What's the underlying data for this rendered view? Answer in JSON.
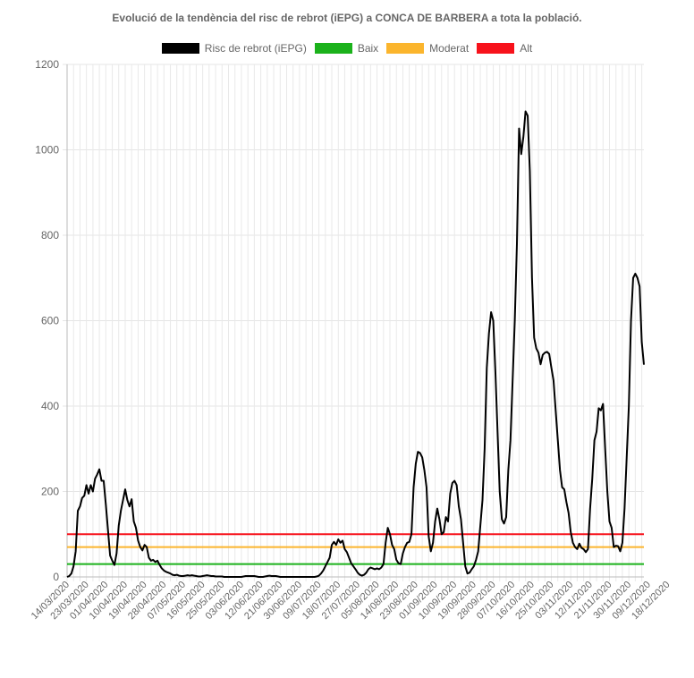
{
  "chart_data": {
    "type": "line",
    "title": "Evolució de la tendència del risc de rebrot (iEPG) a CONCA DE BARBERA a tota la població.",
    "xlabel": "",
    "ylabel": "",
    "ylim": [
      0,
      1200
    ],
    "yticks": [
      0,
      200,
      400,
      600,
      800,
      1000,
      1200
    ],
    "grid": true,
    "legend_position": "top",
    "xtick_labels": [
      "14/03/2020",
      "23/03/2020",
      "01/04/2020",
      "10/04/2020",
      "19/04/2020",
      "28/04/2020",
      "07/05/2020",
      "16/05/2020",
      "25/05/2020",
      "03/06/2020",
      "12/06/2020",
      "21/06/2020",
      "30/06/2020",
      "09/07/2020",
      "18/07/2020",
      "27/07/2020",
      "05/08/2020",
      "14/08/2020",
      "23/08/2020",
      "01/09/2020",
      "10/09/2020",
      "19/09/2020",
      "28/09/2020",
      "07/10/2020",
      "16/10/2020",
      "25/10/2020",
      "03/11/2020",
      "12/11/2020",
      "21/11/2020",
      "30/11/2020",
      "09/12/2020",
      "18/12/2020"
    ],
    "series": [
      {
        "name": "Risc de rebrot (iEPG)",
        "color": "#000000",
        "points": [
          [
            "14/03/2020",
            0
          ],
          [
            "15/03/2020",
            2
          ],
          [
            "16/03/2020",
            8
          ],
          [
            "17/03/2020",
            25
          ],
          [
            "18/03/2020",
            60
          ],
          [
            "19/03/2020",
            155
          ],
          [
            "20/03/2020",
            165
          ],
          [
            "21/03/2020",
            185
          ],
          [
            "22/03/2020",
            190
          ],
          [
            "23/03/2020",
            215
          ],
          [
            "24/03/2020",
            195
          ],
          [
            "25/03/2020",
            215
          ],
          [
            "26/03/2020",
            200
          ],
          [
            "27/03/2020",
            230
          ],
          [
            "28/03/2020",
            240
          ],
          [
            "29/03/2020",
            252
          ],
          [
            "30/03/2020",
            225
          ],
          [
            "31/03/2020",
            225
          ],
          [
            "01/04/2020",
            170
          ],
          [
            "02/04/2020",
            110
          ],
          [
            "03/04/2020",
            50
          ],
          [
            "04/04/2020",
            38
          ],
          [
            "05/04/2020",
            28
          ],
          [
            "06/04/2020",
            55
          ],
          [
            "07/04/2020",
            120
          ],
          [
            "08/04/2020",
            155
          ],
          [
            "09/04/2020",
            180
          ],
          [
            "10/04/2020",
            205
          ],
          [
            "11/04/2020",
            180
          ],
          [
            "12/04/2020",
            165
          ],
          [
            "13/04/2020",
            182
          ],
          [
            "14/04/2020",
            130
          ],
          [
            "15/04/2020",
            115
          ],
          [
            "16/04/2020",
            85
          ],
          [
            "17/04/2020",
            70
          ],
          [
            "18/04/2020",
            62
          ],
          [
            "19/04/2020",
            75
          ],
          [
            "20/04/2020",
            70
          ],
          [
            "21/04/2020",
            45
          ],
          [
            "22/04/2020",
            38
          ],
          [
            "23/04/2020",
            40
          ],
          [
            "24/04/2020",
            35
          ],
          [
            "25/04/2020",
            38
          ],
          [
            "26/04/2020",
            28
          ],
          [
            "27/04/2020",
            20
          ],
          [
            "28/04/2020",
            15
          ],
          [
            "29/04/2020",
            12
          ],
          [
            "30/04/2020",
            10
          ],
          [
            "01/05/2020",
            8
          ],
          [
            "02/05/2020",
            5
          ],
          [
            "03/05/2020",
            4
          ],
          [
            "04/05/2020",
            5
          ],
          [
            "05/05/2020",
            3
          ],
          [
            "06/05/2020",
            2
          ],
          [
            "07/05/2020",
            2
          ],
          [
            "08/05/2020",
            3
          ],
          [
            "09/05/2020",
            4
          ],
          [
            "10/05/2020",
            3
          ],
          [
            "11/05/2020",
            4
          ],
          [
            "12/05/2020",
            3
          ],
          [
            "13/05/2020",
            2
          ],
          [
            "14/05/2020",
            1
          ],
          [
            "15/05/2020",
            1
          ],
          [
            "16/05/2020",
            2
          ],
          [
            "17/05/2020",
            3
          ],
          [
            "18/05/2020",
            4
          ],
          [
            "19/05/2020",
            3
          ],
          [
            "20/05/2020",
            2
          ],
          [
            "21/05/2020",
            2
          ],
          [
            "22/05/2020",
            1
          ],
          [
            "23/05/2020",
            1
          ],
          [
            "24/05/2020",
            1
          ],
          [
            "25/05/2020",
            1
          ],
          [
            "26/05/2020",
            0
          ],
          [
            "27/05/2020",
            0
          ],
          [
            "28/05/2020",
            0
          ],
          [
            "29/05/2020",
            0
          ],
          [
            "30/05/2020",
            0
          ],
          [
            "31/05/2020",
            0
          ],
          [
            "01/06/2020",
            0
          ],
          [
            "02/06/2020",
            0
          ],
          [
            "03/06/2020",
            0
          ],
          [
            "04/06/2020",
            1
          ],
          [
            "05/06/2020",
            2
          ],
          [
            "06/06/2020",
            2
          ],
          [
            "07/06/2020",
            2
          ],
          [
            "08/06/2020",
            2
          ],
          [
            "09/06/2020",
            2
          ],
          [
            "10/06/2020",
            1
          ],
          [
            "11/06/2020",
            0
          ],
          [
            "12/06/2020",
            0
          ],
          [
            "13/06/2020",
            0
          ],
          [
            "14/06/2020",
            1
          ],
          [
            "15/06/2020",
            2
          ],
          [
            "16/06/2020",
            3
          ],
          [
            "17/06/2020",
            2
          ],
          [
            "18/06/2020",
            2
          ],
          [
            "19/06/2020",
            2
          ],
          [
            "20/06/2020",
            1
          ],
          [
            "21/06/2020",
            0
          ],
          [
            "22/06/2020",
            0
          ],
          [
            "23/06/2020",
            0
          ],
          [
            "24/06/2020",
            0
          ],
          [
            "25/06/2020",
            0
          ],
          [
            "26/06/2020",
            0
          ],
          [
            "27/06/2020",
            0
          ],
          [
            "28/06/2020",
            0
          ],
          [
            "29/06/2020",
            0
          ],
          [
            "30/06/2020",
            0
          ],
          [
            "01/07/2020",
            0
          ],
          [
            "02/07/2020",
            0
          ],
          [
            "03/07/2020",
            0
          ],
          [
            "04/07/2020",
            0
          ],
          [
            "05/07/2020",
            0
          ],
          [
            "06/07/2020",
            0
          ],
          [
            "07/07/2020",
            0
          ],
          [
            "08/07/2020",
            1
          ],
          [
            "09/07/2020",
            3
          ],
          [
            "10/07/2020",
            8
          ],
          [
            "11/07/2020",
            15
          ],
          [
            "12/07/2020",
            25
          ],
          [
            "13/07/2020",
            35
          ],
          [
            "14/07/2020",
            45
          ],
          [
            "15/07/2020",
            75
          ],
          [
            "16/07/2020",
            82
          ],
          [
            "17/07/2020",
            75
          ],
          [
            "18/07/2020",
            88
          ],
          [
            "19/07/2020",
            80
          ],
          [
            "20/07/2020",
            85
          ],
          [
            "21/07/2020",
            65
          ],
          [
            "22/07/2020",
            58
          ],
          [
            "23/07/2020",
            45
          ],
          [
            "24/07/2020",
            32
          ],
          [
            "25/07/2020",
            25
          ],
          [
            "26/07/2020",
            18
          ],
          [
            "27/07/2020",
            10
          ],
          [
            "28/07/2020",
            5
          ],
          [
            "29/07/2020",
            3
          ],
          [
            "30/07/2020",
            5
          ],
          [
            "31/07/2020",
            10
          ],
          [
            "01/08/2020",
            18
          ],
          [
            "02/08/2020",
            22
          ],
          [
            "03/08/2020",
            20
          ],
          [
            "04/08/2020",
            18
          ],
          [
            "05/08/2020",
            20
          ],
          [
            "06/08/2020",
            18
          ],
          [
            "07/08/2020",
            22
          ],
          [
            "08/08/2020",
            30
          ],
          [
            "09/08/2020",
            80
          ],
          [
            "10/08/2020",
            115
          ],
          [
            "11/08/2020",
            100
          ],
          [
            "12/08/2020",
            75
          ],
          [
            "13/08/2020",
            65
          ],
          [
            "14/08/2020",
            40
          ],
          [
            "15/08/2020",
            32
          ],
          [
            "16/08/2020",
            30
          ],
          [
            "17/08/2020",
            55
          ],
          [
            "18/08/2020",
            70
          ],
          [
            "19/08/2020",
            80
          ],
          [
            "20/08/2020",
            82
          ],
          [
            "21/08/2020",
            100
          ],
          [
            "22/08/2020",
            210
          ],
          [
            "23/08/2020",
            265
          ],
          [
            "24/08/2020",
            293
          ],
          [
            "25/08/2020",
            290
          ],
          [
            "26/08/2020",
            280
          ],
          [
            "27/08/2020",
            250
          ],
          [
            "28/08/2020",
            210
          ],
          [
            "29/08/2020",
            95
          ],
          [
            "30/08/2020",
            60
          ],
          [
            "31/08/2020",
            80
          ],
          [
            "01/09/2020",
            130
          ],
          [
            "02/09/2020",
            160
          ],
          [
            "03/09/2020",
            135
          ],
          [
            "04/09/2020",
            100
          ],
          [
            "05/09/2020",
            105
          ],
          [
            "06/09/2020",
            140
          ],
          [
            "07/09/2020",
            130
          ],
          [
            "08/09/2020",
            195
          ],
          [
            "09/09/2020",
            220
          ],
          [
            "10/09/2020",
            225
          ],
          [
            "11/09/2020",
            215
          ],
          [
            "12/09/2020",
            165
          ],
          [
            "13/09/2020",
            135
          ],
          [
            "14/09/2020",
            80
          ],
          [
            "15/09/2020",
            25
          ],
          [
            "16/09/2020",
            8
          ],
          [
            "17/09/2020",
            10
          ],
          [
            "18/09/2020",
            18
          ],
          [
            "19/09/2020",
            25
          ],
          [
            "20/09/2020",
            40
          ],
          [
            "21/09/2020",
            60
          ],
          [
            "22/09/2020",
            120
          ],
          [
            "23/09/2020",
            180
          ],
          [
            "24/09/2020",
            300
          ],
          [
            "25/09/2020",
            490
          ],
          [
            "26/09/2020",
            570
          ],
          [
            "27/09/2020",
            620
          ],
          [
            "28/09/2020",
            600
          ],
          [
            "29/09/2020",
            480
          ],
          [
            "30/09/2020",
            340
          ],
          [
            "01/10/2020",
            200
          ],
          [
            "02/10/2020",
            135
          ],
          [
            "03/10/2020",
            125
          ],
          [
            "04/10/2020",
            140
          ],
          [
            "05/10/2020",
            250
          ],
          [
            "06/10/2020",
            320
          ],
          [
            "07/10/2020",
            460
          ],
          [
            "08/10/2020",
            600
          ],
          [
            "09/10/2020",
            780
          ],
          [
            "10/10/2020",
            1050
          ],
          [
            "11/10/2020",
            990
          ],
          [
            "12/10/2020",
            1030
          ],
          [
            "13/10/2020",
            1090
          ],
          [
            "14/10/2020",
            1080
          ],
          [
            "15/10/2020",
            950
          ],
          [
            "16/10/2020",
            700
          ],
          [
            "17/10/2020",
            560
          ],
          [
            "18/10/2020",
            535
          ],
          [
            "19/10/2020",
            525
          ],
          [
            "20/10/2020",
            498
          ],
          [
            "21/10/2020",
            520
          ],
          [
            "22/10/2020",
            525
          ],
          [
            "23/10/2020",
            527
          ],
          [
            "24/10/2020",
            522
          ],
          [
            "25/10/2020",
            490
          ],
          [
            "26/10/2020",
            460
          ],
          [
            "27/10/2020",
            390
          ],
          [
            "28/10/2020",
            320
          ],
          [
            "29/10/2020",
            250
          ],
          [
            "30/10/2020",
            210
          ],
          [
            "31/10/2020",
            205
          ],
          [
            "01/11/2020",
            175
          ],
          [
            "02/11/2020",
            150
          ],
          [
            "03/11/2020",
            105
          ],
          [
            "04/11/2020",
            80
          ],
          [
            "05/11/2020",
            70
          ],
          [
            "06/11/2020",
            65
          ],
          [
            "07/11/2020",
            78
          ],
          [
            "08/11/2020",
            68
          ],
          [
            "09/11/2020",
            65
          ],
          [
            "10/11/2020",
            58
          ],
          [
            "11/11/2020",
            65
          ],
          [
            "12/11/2020",
            160
          ],
          [
            "13/11/2020",
            230
          ],
          [
            "14/11/2020",
            320
          ],
          [
            "15/11/2020",
            340
          ],
          [
            "16/11/2020",
            395
          ],
          [
            "17/11/2020",
            390
          ],
          [
            "18/11/2020",
            405
          ],
          [
            "19/11/2020",
            300
          ],
          [
            "20/11/2020",
            200
          ],
          [
            "21/11/2020",
            130
          ],
          [
            "22/11/2020",
            115
          ],
          [
            "23/11/2020",
            70
          ],
          [
            "24/11/2020",
            73
          ],
          [
            "25/11/2020",
            72
          ],
          [
            "26/11/2020",
            60
          ],
          [
            "27/11/2020",
            80
          ],
          [
            "28/11/2020",
            160
          ],
          [
            "29/11/2020",
            280
          ],
          [
            "30/11/2020",
            400
          ],
          [
            "01/12/2020",
            600
          ],
          [
            "02/12/2020",
            700
          ],
          [
            "03/12/2020",
            710
          ],
          [
            "04/12/2020",
            700
          ],
          [
            "05/12/2020",
            680
          ],
          [
            "06/12/2020",
            550
          ],
          [
            "07/12/2020",
            497
          ]
        ]
      },
      {
        "name": "Baix",
        "color": "#1bb21b",
        "value": 30
      },
      {
        "name": "Moderat",
        "color": "#fbb52d",
        "value": 70
      },
      {
        "name": "Alt",
        "color": "#f7121b",
        "value": 100
      }
    ]
  }
}
